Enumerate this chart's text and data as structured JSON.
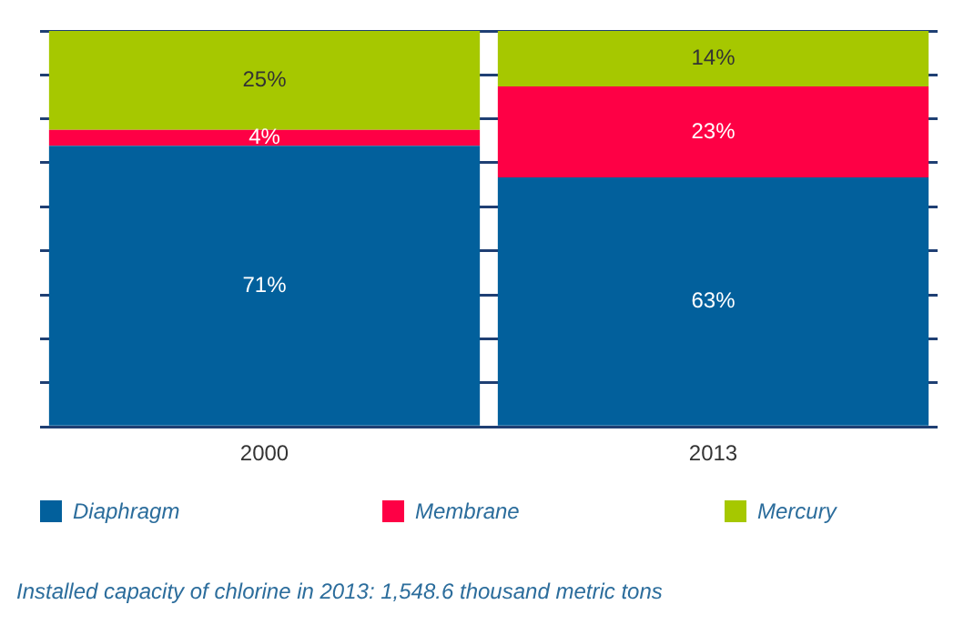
{
  "chart_data": {
    "type": "bar",
    "stacked": true,
    "categories": [
      "2000",
      "2013"
    ],
    "series": [
      {
        "name": "Diaphragm",
        "color": "#02609c",
        "values": [
          71,
          63
        ],
        "value_labels": [
          "71%",
          "63%"
        ]
      },
      {
        "name": "Membrane",
        "color": "#fe0045",
        "values": [
          4,
          23
        ],
        "value_labels": [
          "4%",
          "23%"
        ]
      },
      {
        "name": "Mercury",
        "color": "#a6c800",
        "values": [
          25,
          14
        ],
        "value_labels": [
          "25%",
          "14%"
        ]
      }
    ],
    "ylim": [
      0,
      100
    ],
    "yticks": [
      0,
      {
        "value": 11.1,
        "label": null
      },
      {
        "value": 22.2,
        "label": null
      },
      {
        "value": 33.3,
        "label": null
      },
      {
        "value": 44.4,
        "label": null
      },
      {
        "value": 55.6,
        "label": null
      },
      {
        "value": 66.7,
        "label": null
      },
      {
        "value": 77.8,
        "label": null
      },
      {
        "value": 88.9,
        "label": null
      },
      100
    ],
    "tick_labels": "x",
    "grid": "y",
    "legend": "bottom",
    "annotations": [
      "Installed capacity of chlorine in 2013: 1,548.6 thousand metric tons"
    ]
  }
}
